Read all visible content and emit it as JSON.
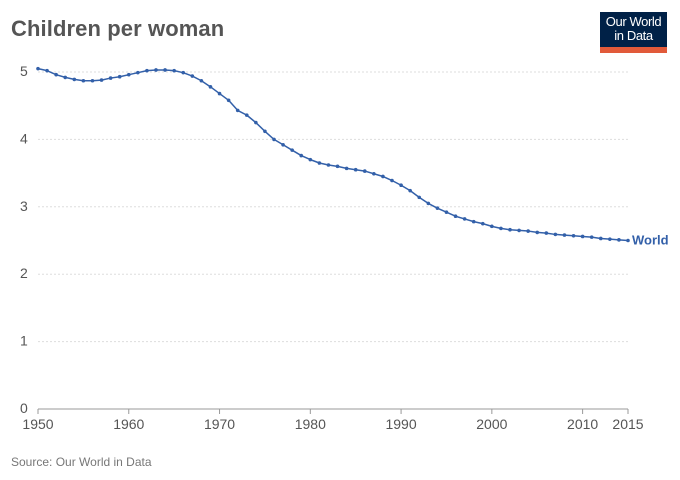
{
  "title": "Children per woman",
  "logo": {
    "line1": "Our World",
    "line2": "in Data"
  },
  "source": {
    "prefix": "Source: ",
    "name": "Our World in Data"
  },
  "colors": {
    "series": "#3360a9",
    "grid": "#dddddd",
    "baseline": "#999999",
    "tick_text": "#555555",
    "logo_bg": "#002147",
    "logo_accent": "#e15a3a"
  },
  "chart_data": {
    "type": "line",
    "title": "Children per woman",
    "xlabel": "",
    "ylabel": "",
    "xlim": [
      1950,
      2015
    ],
    "ylim": [
      0,
      5
    ],
    "x_ticks": [
      1950,
      1960,
      1970,
      1980,
      1990,
      2000,
      2010,
      2015
    ],
    "y_ticks": [
      0,
      1,
      2,
      3,
      4,
      5
    ],
    "grid": "horizontal dotted",
    "series": [
      {
        "name": "World",
        "color": "#3360a9",
        "x": [
          1950,
          1951,
          1952,
          1953,
          1954,
          1955,
          1956,
          1957,
          1958,
          1959,
          1960,
          1961,
          1962,
          1963,
          1964,
          1965,
          1966,
          1967,
          1968,
          1969,
          1970,
          1971,
          1972,
          1973,
          1974,
          1975,
          1976,
          1977,
          1978,
          1979,
          1980,
          1981,
          1982,
          1983,
          1984,
          1985,
          1986,
          1987,
          1988,
          1989,
          1990,
          1991,
          1992,
          1993,
          1994,
          1995,
          1996,
          1997,
          1998,
          1999,
          2000,
          2001,
          2002,
          2003,
          2004,
          2005,
          2006,
          2007,
          2008,
          2009,
          2010,
          2011,
          2012,
          2013,
          2014,
          2015
        ],
        "values": [
          5.05,
          5.02,
          4.96,
          4.92,
          4.89,
          4.87,
          4.87,
          4.88,
          4.91,
          4.93,
          4.96,
          4.99,
          5.02,
          5.03,
          5.03,
          5.02,
          4.99,
          4.94,
          4.87,
          4.78,
          4.68,
          4.58,
          4.43,
          4.36,
          4.25,
          4.12,
          4.0,
          3.92,
          3.84,
          3.76,
          3.7,
          3.65,
          3.62,
          3.6,
          3.57,
          3.55,
          3.53,
          3.49,
          3.45,
          3.39,
          3.32,
          3.24,
          3.14,
          3.05,
          2.98,
          2.92,
          2.86,
          2.82,
          2.78,
          2.75,
          2.71,
          2.68,
          2.66,
          2.65,
          2.64,
          2.62,
          2.61,
          2.59,
          2.58,
          2.57,
          2.56,
          2.55,
          2.53,
          2.52,
          2.51,
          2.5
        ]
      }
    ]
  }
}
